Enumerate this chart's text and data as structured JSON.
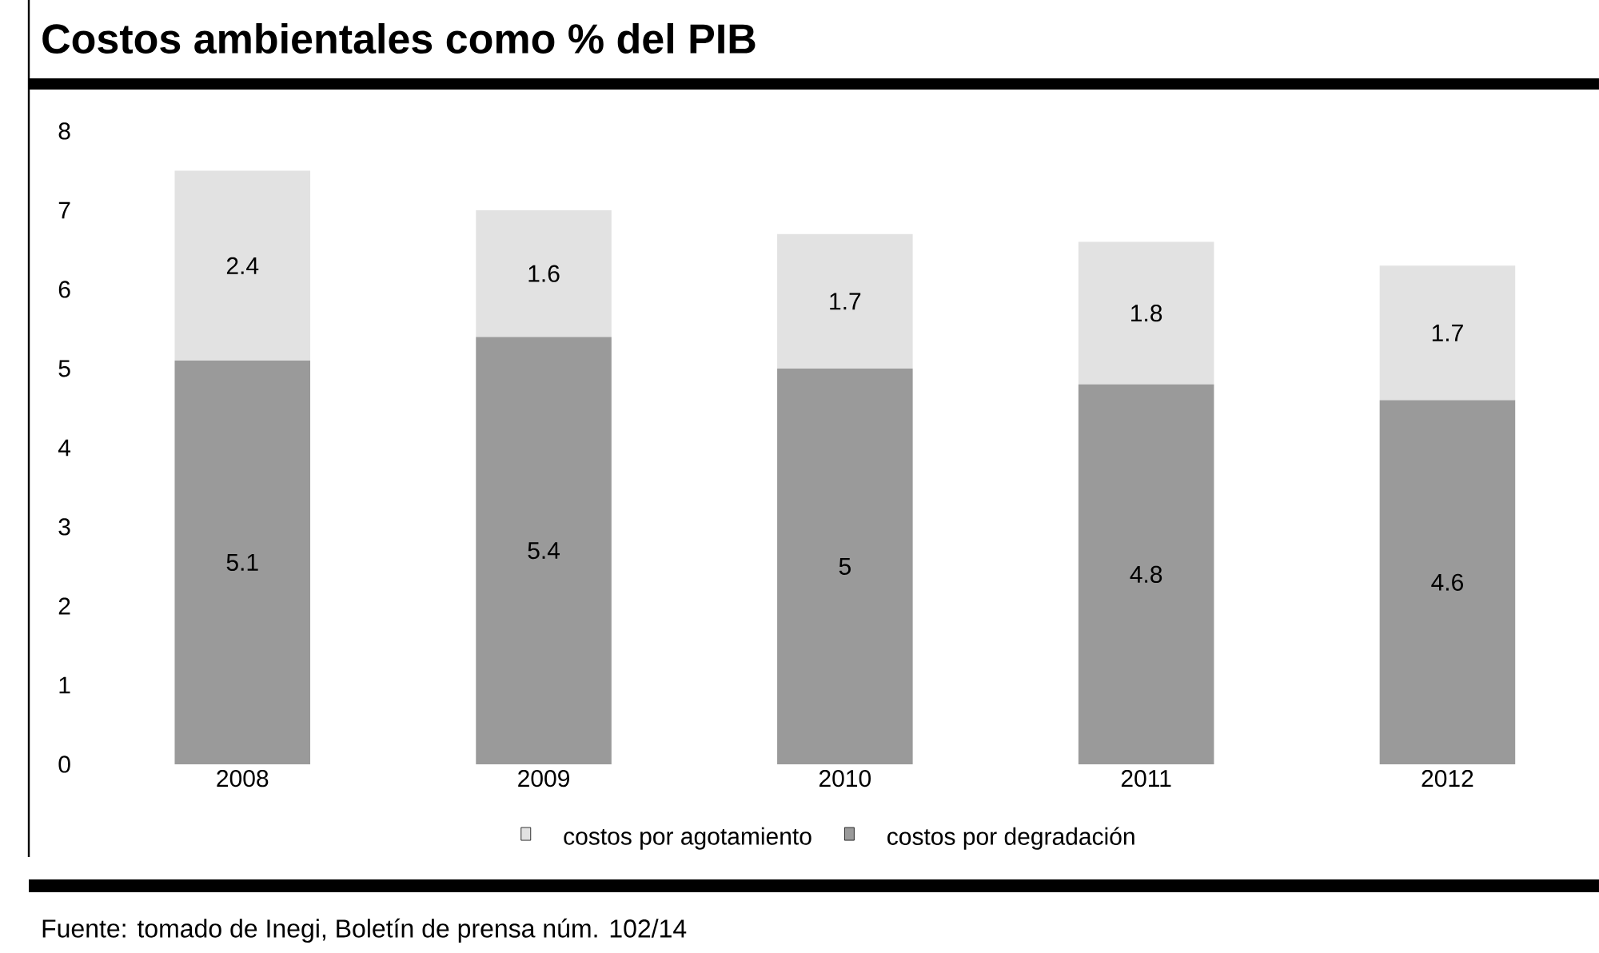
{
  "chart_data": {
    "type": "bar",
    "title": "Costos ambientales como % del PIB",
    "categories": [
      "2008",
      "2009",
      "2010",
      "2011",
      "2012"
    ],
    "stacked": true,
    "series": [
      {
        "name": "costos por degradación",
        "color": "#9a9a9a",
        "values": [
          5.1,
          5.4,
          5,
          4.8,
          4.6
        ]
      },
      {
        "name": "costos por agotamiento",
        "color": "#e2e2e2",
        "values": [
          2.4,
          1.6,
          1.7,
          1.8,
          1.7
        ]
      }
    ],
    "ylim": [
      0,
      8
    ],
    "yticks": [
      0,
      1,
      2,
      3,
      4,
      5,
      6,
      7,
      8
    ],
    "data_labels": true,
    "legend": "bottom",
    "grid": false,
    "annotations": [
      "Fuente: tomado de Inegi, Boletín de prensa núm. 102/14"
    ]
  }
}
